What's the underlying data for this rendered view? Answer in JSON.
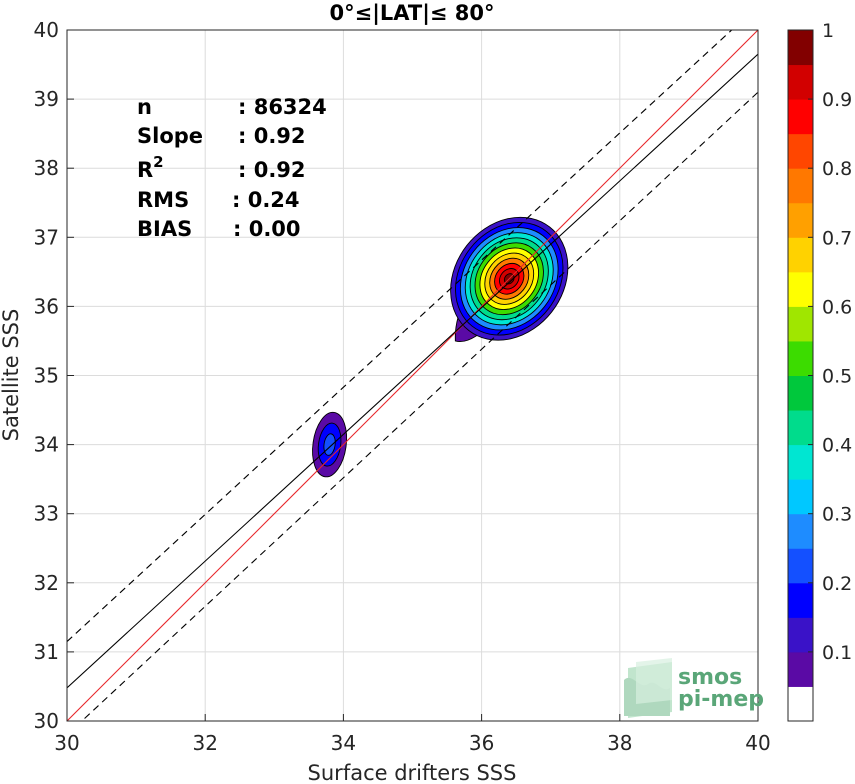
{
  "chart_data": {
    "type": "contour",
    "title": "0°≤|LAT|≤ 80°",
    "xlabel": "Surface drifters SSS",
    "ylabel": "Satellite SSS",
    "xlim": [
      30,
      40
    ],
    "ylim": [
      30,
      40
    ],
    "xticks": [
      30,
      32,
      34,
      36,
      38,
      40
    ],
    "yticks": [
      30,
      31,
      32,
      33,
      34,
      35,
      36,
      37,
      38,
      39,
      40
    ],
    "grid": true,
    "stats": [
      {
        "label": "n",
        "value": ": 86324"
      },
      {
        "label": "Slope",
        "value": ": 0.92"
      },
      {
        "label": "R",
        "sup": "2",
        "value": ": 0.92"
      },
      {
        "label": "RMS",
        "value": ": 0.24"
      },
      {
        "label": "BIAS",
        "value": ": 0.00"
      }
    ],
    "lines": [
      {
        "kind": "one-to-one",
        "color": "#e8262b",
        "style": "solid",
        "slope": 1,
        "intercept": 0
      },
      {
        "kind": "regression",
        "color": "#000000",
        "style": "solid",
        "x": [
          30,
          40
        ],
        "y": [
          30.48,
          39.65
        ]
      },
      {
        "kind": "upper-bound",
        "color": "#000000",
        "style": "dashed",
        "x": [
          30,
          40
        ],
        "y": [
          31.15,
          40.35
        ]
      },
      {
        "kind": "lower-bound",
        "color": "#000000",
        "style": "dashed",
        "x": [
          30,
          40
        ],
        "y": [
          29.8,
          39.1
        ]
      }
    ],
    "density_peaks": [
      {
        "x": 36.4,
        "y": 36.4,
        "max_level": 1.0
      },
      {
        "x": 33.8,
        "y": 34.0,
        "max_level": 0.2
      }
    ],
    "colorbar": {
      "min": 0,
      "max": 1,
      "ticks": [
        "0.1",
        "0.2",
        "0.3",
        "0.4",
        "0.5",
        "0.6",
        "0.7",
        "0.8",
        "0.9",
        "1"
      ],
      "colors": [
        "#ffffff",
        "#5a0aa5",
        "#3a12c8",
        "#0000ff",
        "#1450ff",
        "#1e8cff",
        "#00c8ff",
        "#00e6d2",
        "#00dc8c",
        "#00c83c",
        "#3cdc00",
        "#a0e600",
        "#ffff00",
        "#ffd200",
        "#ffa000",
        "#ff7800",
        "#ff4600",
        "#ff0000",
        "#d20000",
        "#820000"
      ]
    }
  },
  "logo": {
    "line1": "smos",
    "line2": "pi-mep"
  }
}
